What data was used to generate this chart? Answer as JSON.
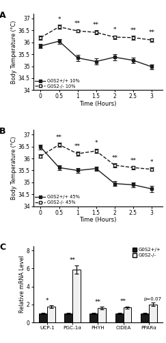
{
  "panel_A": {
    "title": "A",
    "x": [
      0,
      0.5,
      1,
      1.5,
      2,
      2.5,
      3
    ],
    "wt_mean": [
      35.85,
      36.05,
      35.35,
      35.2,
      35.38,
      35.25,
      34.98
    ],
    "wt_se": [
      0.08,
      0.1,
      0.12,
      0.13,
      0.12,
      0.11,
      0.1
    ],
    "ko_mean": [
      36.2,
      36.65,
      36.48,
      36.42,
      36.22,
      36.2,
      36.1
    ],
    "ko_se": [
      0.08,
      0.08,
      0.07,
      0.08,
      0.07,
      0.08,
      0.08
    ],
    "sig_ko_single": [
      0.5,
      2.0
    ],
    "sig_ko_double": [
      1.0,
      1.5,
      2.5,
      3.0
    ],
    "ylim": [
      34.0,
      37.2
    ],
    "yticks": [
      34,
      34.5,
      35,
      35.5,
      36,
      36.5,
      37
    ],
    "xtick_labels": [
      "0",
      "0.5",
      "1",
      "1.5",
      "2",
      "2.5",
      "3"
    ],
    "xlabel": "Time (Hours)",
    "ylabel": "Body Temperature (°C)",
    "legend_wt": "G0S2+/+ 10%",
    "legend_ko": "G0S2-/- 10%"
  },
  "panel_B": {
    "title": "B",
    "x": [
      0,
      0.5,
      1,
      1.5,
      2,
      2.5,
      3
    ],
    "wt_mean": [
      36.48,
      35.62,
      35.5,
      35.58,
      34.95,
      34.9,
      34.73
    ],
    "wt_se": [
      0.1,
      0.1,
      0.1,
      0.09,
      0.1,
      0.1,
      0.13
    ],
    "ko_mean": [
      36.1,
      36.58,
      36.2,
      36.32,
      35.72,
      35.62,
      35.55
    ],
    "ko_se": [
      0.08,
      0.08,
      0.08,
      0.09,
      0.08,
      0.07,
      0.07
    ],
    "sig_ko_single": [
      1.5,
      3.0
    ],
    "sig_ko_double": [
      0.5,
      1.0,
      2.0,
      2.5
    ],
    "ylim": [
      34.0,
      37.2
    ],
    "yticks": [
      34,
      34.5,
      35,
      35.5,
      36,
      36.5,
      37
    ],
    "xtick_labels": [
      "0",
      "0.5",
      "1",
      "1.5",
      "2",
      "2.5",
      "3"
    ],
    "xlabel": "Time (Hours)",
    "ylabel": "Body Temperature (°C)",
    "legend_wt": "G0S2+/+ 45%",
    "legend_ko": "G0S2-/- 45%"
  },
  "panel_C": {
    "title": "C",
    "genes": [
      "UCP-1",
      "PGC-1α",
      "PHYH",
      "CIDEA",
      "PPARα"
    ],
    "wt_mean": [
      1.0,
      1.0,
      1.0,
      1.0,
      1.0
    ],
    "wt_se": [
      0.08,
      0.08,
      0.07,
      0.07,
      0.08
    ],
    "ko_mean": [
      1.75,
      5.9,
      1.6,
      1.65,
      2.0
    ],
    "ko_se": [
      0.15,
      0.45,
      0.12,
      0.13,
      0.18
    ],
    "sig": [
      "*",
      "**",
      "**",
      "**",
      "p=0.07"
    ],
    "ylim": [
      0,
      8.5
    ],
    "yticks": [
      0,
      2,
      4,
      6,
      8
    ],
    "ylabel": "Relative mRNA Level",
    "color_wt": "#1a1a1a",
    "color_ko": "#f0f0f0"
  },
  "bg_color": "#ffffff",
  "line_color": "#1a1a1a"
}
